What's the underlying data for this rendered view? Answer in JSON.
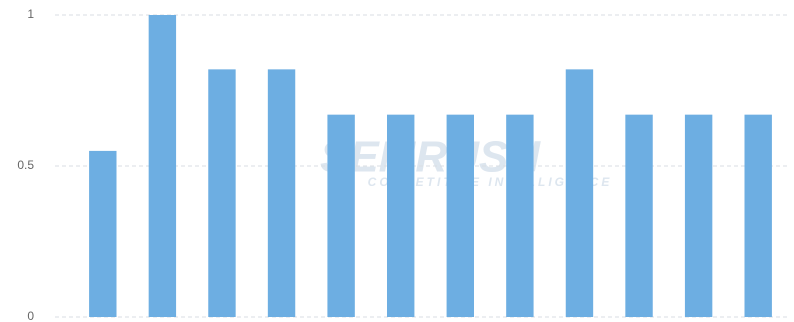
{
  "chart_data": {
    "type": "bar",
    "watermark": "SEMRUSH",
    "watermark_subtitle": "COMPETITIVE INTELLIGENCE",
    "categories": [
      null,
      null,
      null,
      null,
      null,
      null,
      null,
      null,
      null,
      null,
      null,
      null
    ],
    "values": [
      0.55,
      1,
      0.82,
      0.82,
      0.67,
      0.67,
      0.67,
      0.67,
      0.82,
      0.67,
      0.67,
      0.67
    ],
    "color": "#6daee2",
    "ylim": [
      0,
      1
    ],
    "yticks": [
      0,
      0.5,
      1
    ],
    "grid": true
  }
}
